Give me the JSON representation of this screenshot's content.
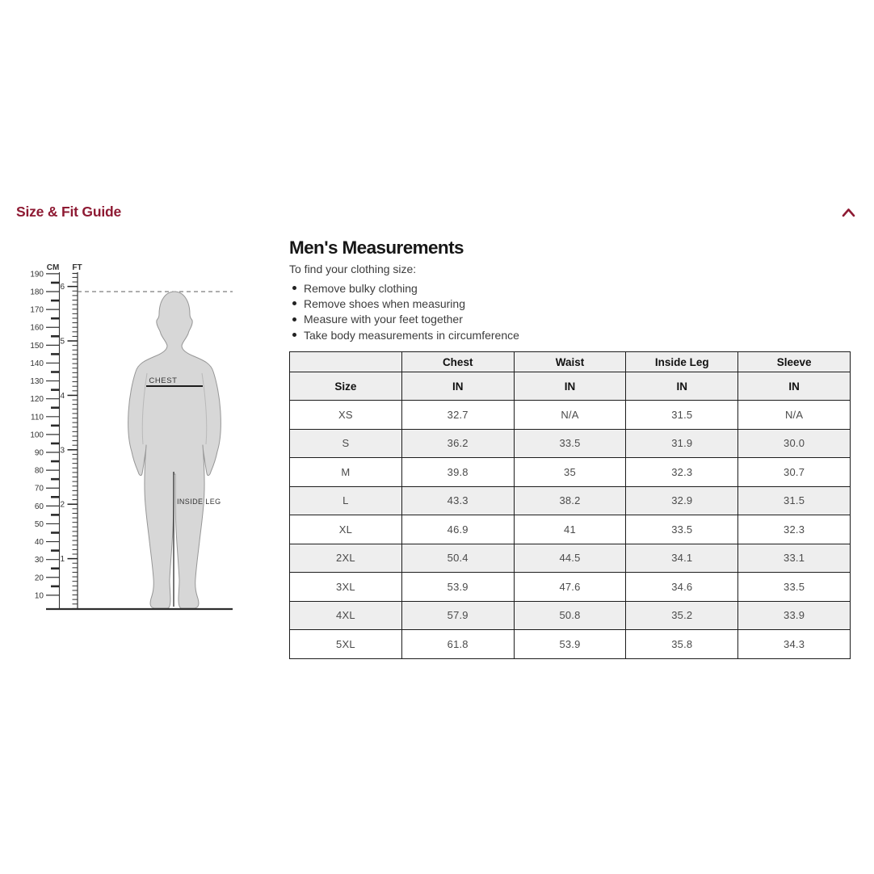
{
  "page": {
    "title": "Size & Fit Guide",
    "collapse_icon": "chevron-up"
  },
  "section": {
    "heading": "Men's Measurements",
    "intro": "To find your clothing size:",
    "bullets": [
      "Remove bulky clothing",
      "Remove shoes when measuring",
      "Measure with your feet together",
      "Take body measurements in circumference"
    ]
  },
  "diagram": {
    "cm_unit": "CM",
    "ft_unit": "FT",
    "chest_label": "CHEST",
    "inside_leg_label": "INSIDE LEG",
    "ruler": {
      "cm_values": [
        190,
        180,
        170,
        160,
        150,
        140,
        130,
        120,
        110,
        100,
        90,
        80,
        70,
        60,
        50,
        40,
        30,
        20,
        10
      ],
      "ft_values": [
        6,
        5,
        4,
        3,
        2,
        1
      ]
    }
  },
  "table": {
    "column_headers": [
      "",
      "Chest",
      "Waist",
      "Inside Leg",
      "Sleeve"
    ],
    "unit_row": [
      "Size",
      "IN",
      "IN",
      "IN",
      "IN"
    ],
    "rows": [
      [
        "XS",
        "32.7",
        "N/A",
        "31.5",
        "N/A"
      ],
      [
        "S",
        "36.2",
        "33.5",
        "31.9",
        "30.0"
      ],
      [
        "M",
        "39.8",
        "35",
        "32.3",
        "30.7"
      ],
      [
        "L",
        "43.3",
        "38.2",
        "32.9",
        "31.5"
      ],
      [
        "XL",
        "46.9",
        "41",
        "33.5",
        "32.3"
      ],
      [
        "2XL",
        "50.4",
        "44.5",
        "34.1",
        "33.1"
      ],
      [
        "3XL",
        "53.9",
        "47.6",
        "34.6",
        "33.5"
      ],
      [
        "4XL",
        "57.9",
        "50.8",
        "35.2",
        "33.9"
      ],
      [
        "5XL",
        "61.8",
        "53.9",
        "35.8",
        "34.3"
      ]
    ]
  },
  "colors": {
    "accent": "#8e1a33",
    "row_stripe": "#eeeeee",
    "table_border": "#1d1d1d",
    "silhouette_fill": "#d7d7d7"
  }
}
